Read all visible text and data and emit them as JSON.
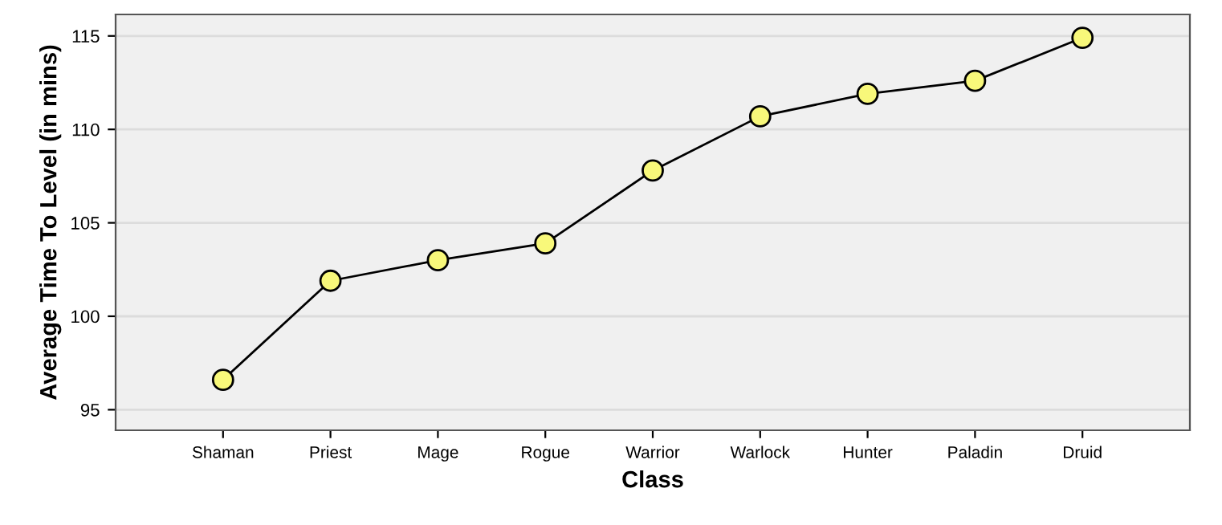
{
  "chart_data": {
    "type": "line",
    "xlabel": "Class",
    "ylabel": "Average Time To Level (in mins)",
    "categories": [
      "Shaman",
      "Priest",
      "Mage",
      "Rogue",
      "Warrior",
      "Warlock",
      "Hunter",
      "Paladin",
      "Druid"
    ],
    "series": [
      {
        "color": "#f8f87a",
        "values": [
          96.6,
          101.9,
          103.0,
          103.9,
          107.8,
          110.7,
          111.9,
          112.6,
          114.9
        ]
      }
    ],
    "ylim": [
      93.9,
      116.15
    ],
    "yticks": [
      95,
      100,
      105,
      110,
      115
    ],
    "grid": "y",
    "marker": "circle",
    "line_style": "solid"
  }
}
